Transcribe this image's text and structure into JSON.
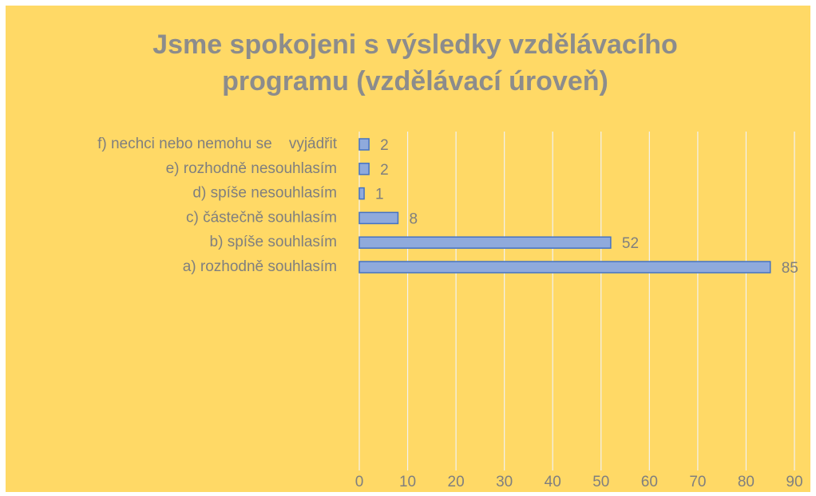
{
  "chart_data": {
    "type": "bar",
    "orientation": "horizontal",
    "title": [
      "Jsme spokojeni s výsledky vzdělávacího",
      "programu (vzdělávací úroveň)"
    ],
    "categories": [
      "f) nechci nebo nemohu se    vyjádřit",
      "e) rozhodně nesouhlasím",
      "d) spíše nesouhlasím",
      "c) částečně souhlasím",
      "b) spíše souhlasím",
      "a) rozhodně souhlasím"
    ],
    "values": [
      2,
      2,
      1,
      8,
      52,
      85
    ],
    "color": "#8faadc",
    "edge_color": "#4472c4",
    "xlim": [
      0,
      90
    ],
    "xticks": [
      0,
      10,
      20,
      30,
      40,
      50,
      60,
      70,
      80,
      90
    ],
    "grid": true
  }
}
